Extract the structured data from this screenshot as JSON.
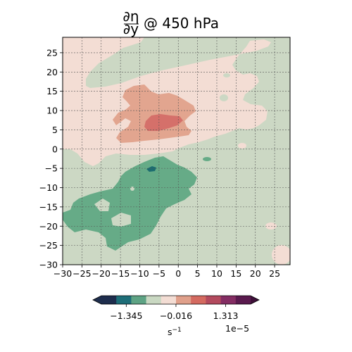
{
  "chart_data": {
    "type": "contourf",
    "title": {
      "numerator": "∂η",
      "denominator": "∂y",
      "suffix": "@ 450 hPa"
    },
    "xlim": [
      -30,
      29
    ],
    "ylim": [
      -30,
      29
    ],
    "x_ticks": [
      -30,
      -25,
      -20,
      -15,
      -10,
      -5,
      0,
      5,
      10,
      15,
      20,
      25
    ],
    "y_ticks": [
      -30,
      -25,
      -20,
      -15,
      -10,
      -5,
      0,
      5,
      10,
      15,
      20,
      25
    ],
    "grid": true,
    "colorbar": {
      "orientation": "horizontal",
      "extend": "both",
      "tick_labels": [
        "−1.345",
        "−0.016",
        "1.313"
      ],
      "tick_values": [
        -1.345,
        -0.016,
        1.313
      ],
      "unit": "s",
      "unit_exponent": "−1",
      "offset_text": "1e−5",
      "colors": [
        "#1e2d4d",
        "#1e6e78",
        "#5ea384",
        "#c9d8c2",
        "#f3ddd4",
        "#e0a08b",
        "#d46a60",
        "#b34a5e",
        "#842d63",
        "#5a1a4e"
      ],
      "under_color": "#1e2d4d",
      "over_color": "#3d0f38"
    },
    "regions": [
      {
        "name": "background",
        "level": "slightly-negative",
        "color": "#ccd8c4"
      },
      {
        "name": "northern-band",
        "level": "slightly-positive",
        "color": "#f3ddd4",
        "x_range": [
          -30,
          24
        ],
        "y_range": [
          0,
          28
        ]
      },
      {
        "name": "central-positive",
        "level": "positive",
        "color": "#e2a58f",
        "x_range": [
          -16,
          4
        ],
        "y_range": [
          2,
          17
        ]
      },
      {
        "name": "peak-positive",
        "level": "positive-high",
        "color": "#d5706a",
        "x_range": [
          -9,
          1
        ],
        "y_range": [
          5,
          9
        ]
      },
      {
        "name": "southern-negative",
        "level": "negative",
        "color": "#66ab87",
        "x_range": [
          -29,
          5
        ],
        "y_range": [
          -27,
          -2
        ]
      },
      {
        "name": "minimum",
        "level": "negative-low",
        "color": "#1c6c70",
        "x_range": [
          -8,
          -6
        ],
        "y_range": [
          -5,
          -4
        ]
      }
    ]
  }
}
